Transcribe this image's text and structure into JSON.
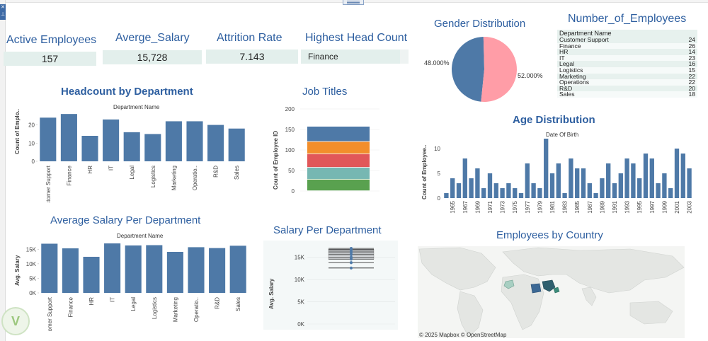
{
  "kpis": {
    "active_employees": {
      "label": "Active Employees",
      "value": "157"
    },
    "avg_salary": {
      "label": "Averge_Salary",
      "value": "15,728"
    },
    "attrition": {
      "label": "Attrition Rate",
      "value": "7.143"
    },
    "head_count": {
      "label": "Highest Head Count",
      "value": "Finance"
    }
  },
  "gender": {
    "title": "Gender Distribution",
    "left_label": "48.000%",
    "right_label": "52.000%"
  },
  "employees_table": {
    "title": "Number_of_Employees",
    "header": "Department Name",
    "rows": [
      {
        "name": "Customer Support",
        "count": "24"
      },
      {
        "name": "Finance",
        "count": "26"
      },
      {
        "name": "HR",
        "count": "14"
      },
      {
        "name": "IT",
        "count": "23"
      },
      {
        "name": "Legal",
        "count": "16"
      },
      {
        "name": "Logistics",
        "count": "15"
      },
      {
        "name": "Marketing",
        "count": "22"
      },
      {
        "name": "Operations",
        "count": "22"
      },
      {
        "name": "R&D",
        "count": "20"
      },
      {
        "name": "Sales",
        "count": "18"
      }
    ]
  },
  "headcount": {
    "title": "Headcount by Department",
    "subtitle": "Department Name",
    "ylabel": "Count of Emplo.."
  },
  "job_titles": {
    "title": "Job Titles",
    "ylabel": "Count of Employee ID"
  },
  "age": {
    "title": "Age Distribution",
    "subtitle": "Date Of Birth",
    "ylabel": "Count of Employee.."
  },
  "avg_salary_dept": {
    "title": "Average Salary Per Department",
    "subtitle": "Department Name",
    "ylabel": "Avg. Salary"
  },
  "salary_dept": {
    "title": "Salary Per Department",
    "ylabel": "Avg. Salary"
  },
  "country": {
    "title": "Employees by Country",
    "credit": "© 2025 Mapbox © OpenStreetMap"
  },
  "colors": {
    "bar": "#4e79a7",
    "pink": "#ff9da7",
    "orange": "#f28e2b",
    "red": "#e15759",
    "teal": "#76b7b2",
    "green": "#59a14f",
    "title": "#2e5fa0"
  },
  "chart_data": [
    {
      "type": "bar",
      "title": "Headcount by Department",
      "xlabel": "Department Name",
      "ylabel": "Count of Emplo..",
      "categories": [
        "Customer Support",
        "Finance",
        "HR",
        "IT",
        "Legal",
        "Logistics",
        "Marketing",
        "Operatio..",
        "R&D",
        "Sales"
      ],
      "values": [
        24,
        26,
        14,
        23,
        16,
        15,
        22,
        22,
        20,
        18
      ],
      "ylim": [
        0,
        28
      ],
      "yticks": [
        "0",
        "10",
        "20"
      ]
    },
    {
      "type": "bar",
      "title": "Job Titles",
      "ylabel": "Count of Employee ID",
      "stacked": true,
      "segments": [
        {
          "color": "#59a14f",
          "value": 28
        },
        {
          "color": "#76b7b2",
          "value": 29
        },
        {
          "color": "#e15759",
          "value": 33
        },
        {
          "color": "#f28e2b",
          "value": 30
        },
        {
          "color": "#4e79a7",
          "value": 37
        }
      ],
      "ylim": [
        0,
        200
      ],
      "yticks": [
        "0",
        "50",
        "100",
        "150",
        "200"
      ]
    },
    {
      "type": "bar",
      "title": "Age Distribution",
      "xlabel": "Date Of Birth",
      "ylabel": "Count of Employee..",
      "x": [
        1964,
        1965,
        1966,
        1967,
        1968,
        1969,
        1970,
        1971,
        1972,
        1973,
        1974,
        1975,
        1976,
        1977,
        1978,
        1979,
        1980,
        1981,
        1982,
        1983,
        1984,
        1985,
        1986,
        1987,
        1988,
        1989,
        1990,
        1991,
        1992,
        1993,
        1994,
        1995,
        1996,
        1997,
        1998,
        1999,
        2000,
        2001,
        2002,
        2003
      ],
      "values": [
        1,
        4,
        3,
        8,
        4,
        6,
        2,
        5,
        3,
        2,
        3,
        2,
        1,
        7,
        3,
        2,
        12,
        5,
        7,
        1,
        8,
        6,
        6,
        3,
        1,
        4,
        7,
        3,
        5,
        8,
        7,
        4,
        9,
        8,
        3,
        5,
        2,
        10,
        9,
        6
      ],
      "ylim": [
        0,
        12
      ],
      "yticks": [
        "0",
        "5",
        "10"
      ],
      "xticks": [
        "1965",
        "1967",
        "1969",
        "1971",
        "1973",
        "1975",
        "1977",
        "1979",
        "1981",
        "1983",
        "1985",
        "1987",
        "1989",
        "1991",
        "1993",
        "1995",
        "1997",
        "1999",
        "2001",
        "2003"
      ]
    },
    {
      "type": "bar",
      "title": "Average Salary Per Department",
      "xlabel": "Department Name",
      "ylabel": "Avg. Salary",
      "categories": [
        "Customer Support",
        "Finance",
        "HR",
        "IT",
        "Legal",
        "Logistics",
        "Marketing",
        "Operatio..",
        "R&D",
        "Sales"
      ],
      "values": [
        16900,
        15300,
        12400,
        17000,
        16300,
        16400,
        14100,
        15700,
        15400,
        16200
      ],
      "ylim": [
        0,
        17500
      ],
      "yticks": [
        "0K",
        "5K",
        "10K",
        "15K"
      ]
    },
    {
      "type": "scatter",
      "title": "Salary Per Department",
      "ylabel": "Avg. Salary",
      "values": [
        12600,
        13800,
        14600,
        15000,
        15600,
        16000,
        16400,
        16800,
        17000
      ],
      "ylim": [
        0,
        17500
      ],
      "yticks": [
        "0K",
        "5K",
        "10K",
        "15K"
      ]
    },
    {
      "type": "pie",
      "title": "Gender Distribution",
      "slices": [
        {
          "label": "48.000%",
          "value": 48,
          "color": "#4e79a7"
        },
        {
          "label": "52.000%",
          "value": 52,
          "color": "#ff9da7"
        }
      ]
    }
  ]
}
